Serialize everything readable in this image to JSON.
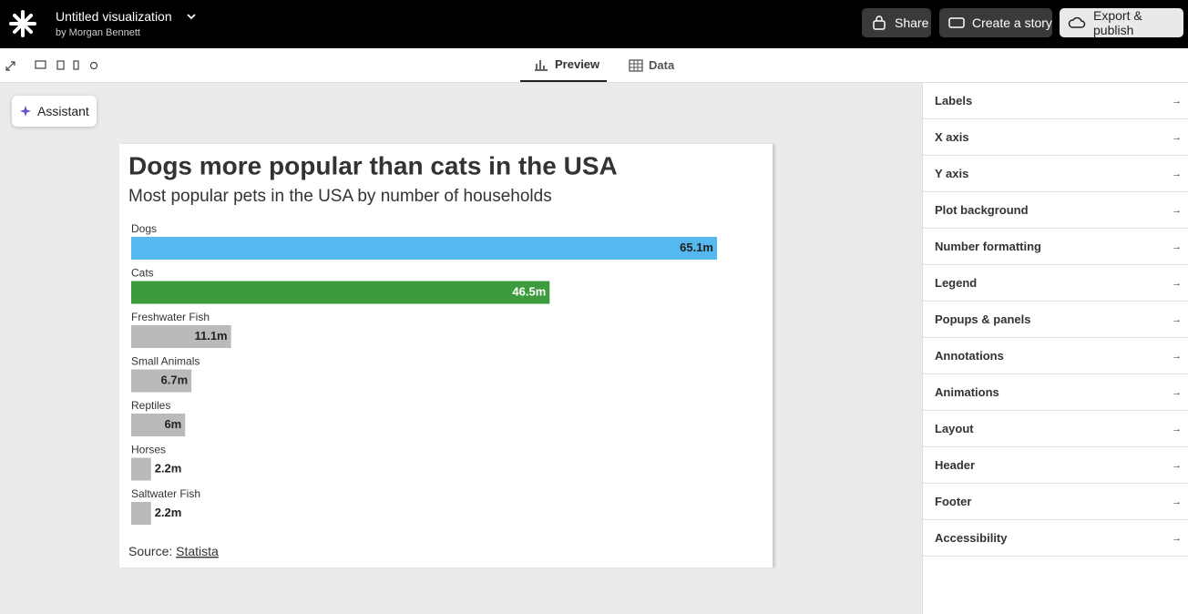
{
  "header": {
    "title": "Untitled visualization",
    "author": "by Morgan Bennett",
    "buttons": [
      "Share",
      "Create a story",
      "Export & publish"
    ]
  },
  "tabs": [
    "Preview",
    "Data"
  ],
  "assistant": "Assistant",
  "chart_data": {
    "type": "bar",
    "title": "Dogs more popular than cats in the USA",
    "subtitle": "Most popular pets in the USA by number of households",
    "categories": [
      "Dogs",
      "Cats",
      "Freshwater Fish",
      "Small Animals",
      "Reptiles",
      "Horses",
      "Saltwater Fish"
    ],
    "values": [
      65.1,
      46.5,
      11.1,
      6.7,
      6,
      2.2,
      2.2
    ],
    "value_labels": [
      "65.1m",
      "46.5m",
      "11.1m",
      "6.7m",
      "6m",
      "2.2m",
      "2.2m"
    ],
    "colors": [
      "#55b8ee",
      "#3c9b3c",
      "#bababa",
      "#b9bbba",
      "#bababa",
      "#bababa",
      "#bababa"
    ],
    "source_label": "Source:",
    "source_link": "Statista"
  },
  "settings_panel": {
    "items": [
      "Labels",
      "X axis",
      "Y axis",
      "Plot background",
      "Number formatting",
      "Legend",
      "Popups & panels",
      "Annotations",
      "Animations",
      "Layout",
      "Header",
      "Footer",
      "Accessibility"
    ]
  }
}
